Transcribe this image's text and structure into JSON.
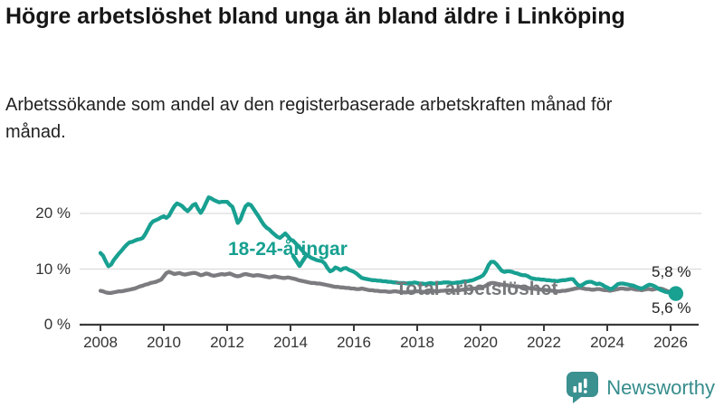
{
  "header": {
    "title": "Högre arbetslöshet bland unga än bland äldre i Linköping",
    "subtitle": "Arbetssökande som andel av den registerbaserade arbetskraften månad för månad."
  },
  "chart_data": {
    "type": "line",
    "x_monthly_start": "2008-01",
    "x_monthly_end": "2026-03",
    "x_tick_years": [
      2008,
      2010,
      2012,
      2014,
      2016,
      2018,
      2020,
      2022,
      2024,
      2026
    ],
    "y_ticks": [
      {
        "value": 0,
        "label": "0 %"
      },
      {
        "value": 10,
        "label": "10 %"
      },
      {
        "value": 20,
        "label": "20 %"
      }
    ],
    "ylim": [
      0,
      25
    ],
    "grid": "horizontal",
    "legend_position": "inline-annotations",
    "series": [
      {
        "name": "18-24-åringar",
        "color": "#18a091",
        "latest_value": 5.6,
        "latest_value_label": "5,6 %",
        "monthly_values": [
          12.9,
          12.4,
          11.4,
          10.5,
          10.8,
          11.6,
          12.2,
          12.8,
          13.3,
          13.9,
          14.4,
          14.8,
          14.9,
          15.1,
          15.3,
          15.4,
          15.6,
          16.3,
          17.2,
          18.1,
          18.6,
          18.8,
          19.0,
          19.3,
          19.5,
          19.2,
          19.6,
          20.5,
          21.3,
          21.8,
          21.6,
          21.3,
          20.8,
          20.4,
          20.9,
          21.5,
          21.7,
          20.8,
          20.1,
          20.9,
          21.9,
          22.9,
          22.7,
          22.4,
          22.2,
          22.0,
          22.1,
          22.1,
          22.1,
          21.6,
          21.2,
          19.8,
          18.3,
          18.9,
          20.2,
          21.3,
          21.7,
          21.5,
          20.8,
          20.1,
          19.4,
          18.6,
          17.9,
          17.4,
          17.1,
          16.6,
          16.2,
          15.8,
          15.6,
          16.0,
          16.4,
          15.9,
          15.3,
          15.1,
          14.6,
          14.1,
          13.6,
          13.0,
          12.6,
          12.3,
          12.0,
          11.8,
          11.6,
          11.5,
          11.4,
          11.0,
          10.2,
          9.6,
          9.8,
          10.3,
          10.1,
          9.8,
          10.1,
          10.2,
          9.9,
          9.7,
          9.5,
          9.2,
          8.8,
          8.4,
          8.3,
          8.2,
          8.1,
          8.0,
          8.0,
          7.9,
          7.9,
          7.8,
          7.8,
          7.7,
          7.7,
          7.6,
          7.6,
          7.5,
          7.5,
          7.5,
          7.4,
          7.5,
          7.5,
          7.6,
          7.5,
          7.4,
          7.4,
          7.3,
          7.4,
          7.5,
          7.4,
          7.4,
          7.5,
          7.5,
          7.6,
          7.6,
          7.6,
          7.5,
          7.5,
          7.6,
          7.6,
          7.7,
          7.8,
          7.8,
          7.9,
          8.0,
          8.2,
          8.4,
          8.6,
          8.9,
          9.6,
          10.7,
          11.3,
          11.3,
          10.9,
          10.3,
          9.7,
          9.5,
          9.6,
          9.6,
          9.5,
          9.3,
          9.2,
          9.0,
          8.9,
          8.9,
          8.7,
          8.4,
          8.3,
          8.2,
          8.2,
          8.1,
          8.1,
          8.0,
          8.0,
          7.9,
          7.9,
          7.8,
          7.9,
          8.0,
          8.0,
          8.1,
          8.2,
          8.2,
          7.6,
          7.1,
          7.0,
          7.3,
          7.6,
          7.7,
          7.7,
          7.5,
          7.3,
          7.4,
          7.2,
          6.9,
          6.7,
          6.4,
          6.5,
          6.9,
          7.3,
          7.4,
          7.4,
          7.3,
          7.2,
          7.1,
          7.0,
          6.8,
          6.6,
          6.5,
          6.7,
          7.0,
          7.2,
          7.1,
          6.9,
          6.6,
          6.3,
          6.1,
          5.9,
          5.8,
          5.8,
          5.7,
          5.6
        ]
      },
      {
        "name": "Total arbetslöshet",
        "color": "#7c7c80",
        "latest_value": 5.8,
        "latest_value_label": "5,8 %",
        "monthly_values": [
          6.1,
          6.0,
          5.8,
          5.7,
          5.7,
          5.8,
          5.9,
          6.0,
          6.0,
          6.1,
          6.2,
          6.3,
          6.4,
          6.5,
          6.7,
          6.9,
          7.0,
          7.2,
          7.3,
          7.5,
          7.6,
          7.7,
          7.9,
          8.1,
          8.7,
          9.3,
          9.5,
          9.3,
          9.1,
          9.2,
          9.3,
          9.1,
          9.0,
          9.1,
          9.2,
          9.3,
          9.3,
          9.1,
          8.9,
          9.0,
          9.2,
          9.1,
          8.9,
          8.8,
          8.9,
          9.0,
          9.1,
          9.0,
          9.1,
          9.2,
          9.0,
          8.8,
          8.7,
          8.8,
          9.0,
          9.1,
          9.0,
          8.9,
          8.8,
          8.9,
          8.9,
          8.8,
          8.7,
          8.6,
          8.5,
          8.6,
          8.7,
          8.6,
          8.5,
          8.4,
          8.4,
          8.5,
          8.4,
          8.3,
          8.2,
          8.0,
          7.9,
          7.8,
          7.7,
          7.6,
          7.5,
          7.5,
          7.4,
          7.4,
          7.3,
          7.2,
          7.1,
          7.0,
          6.9,
          6.8,
          6.8,
          6.7,
          6.7,
          6.6,
          6.6,
          6.5,
          6.5,
          6.4,
          6.4,
          6.5,
          6.4,
          6.3,
          6.2,
          6.2,
          6.1,
          6.1,
          6.0,
          6.0,
          6.0,
          5.9,
          5.9,
          6.0,
          6.0,
          5.9,
          5.9,
          5.8,
          5.8,
          5.9,
          5.9,
          6.0,
          6.0,
          6.0,
          5.9,
          5.9,
          6.0,
          6.0,
          6.1,
          6.0,
          6.0,
          6.1,
          6.1,
          6.2,
          6.2,
          6.1,
          6.1,
          6.2,
          6.2,
          6.3,
          6.3,
          6.4,
          6.4,
          6.5,
          6.5,
          6.6,
          6.7,
          6.8,
          7.0,
          7.3,
          7.5,
          7.5,
          7.4,
          7.3,
          7.2,
          7.1,
          7.1,
          7.0,
          7.0,
          6.9,
          6.9,
          6.8,
          6.7,
          6.7,
          6.6,
          6.5,
          6.5,
          6.4,
          6.4,
          6.3,
          6.3,
          6.2,
          6.2,
          6.1,
          6.1,
          6.0,
          6.0,
          6.1,
          6.1,
          6.2,
          6.3,
          6.4,
          6.5,
          6.6,
          6.6,
          6.5,
          6.4,
          6.4,
          6.3,
          6.3,
          6.4,
          6.4,
          6.3,
          6.2,
          6.2,
          6.1,
          6.2,
          6.3,
          6.4,
          6.5,
          6.5,
          6.4,
          6.4,
          6.5,
          6.4,
          6.3,
          6.3,
          6.2,
          6.3,
          6.4,
          6.4,
          6.3,
          6.4,
          6.5,
          6.5,
          6.4,
          6.2,
          6.0,
          5.9,
          5.8,
          5.8
        ]
      }
    ]
  },
  "annotations": {
    "series_label_youth": "18-24-åringar",
    "series_label_total": "Total arbetslöshet",
    "end_label_top": "5,8 %",
    "end_label_bottom": "5,6 %"
  },
  "footer": {
    "brand": "Newsworthy"
  }
}
